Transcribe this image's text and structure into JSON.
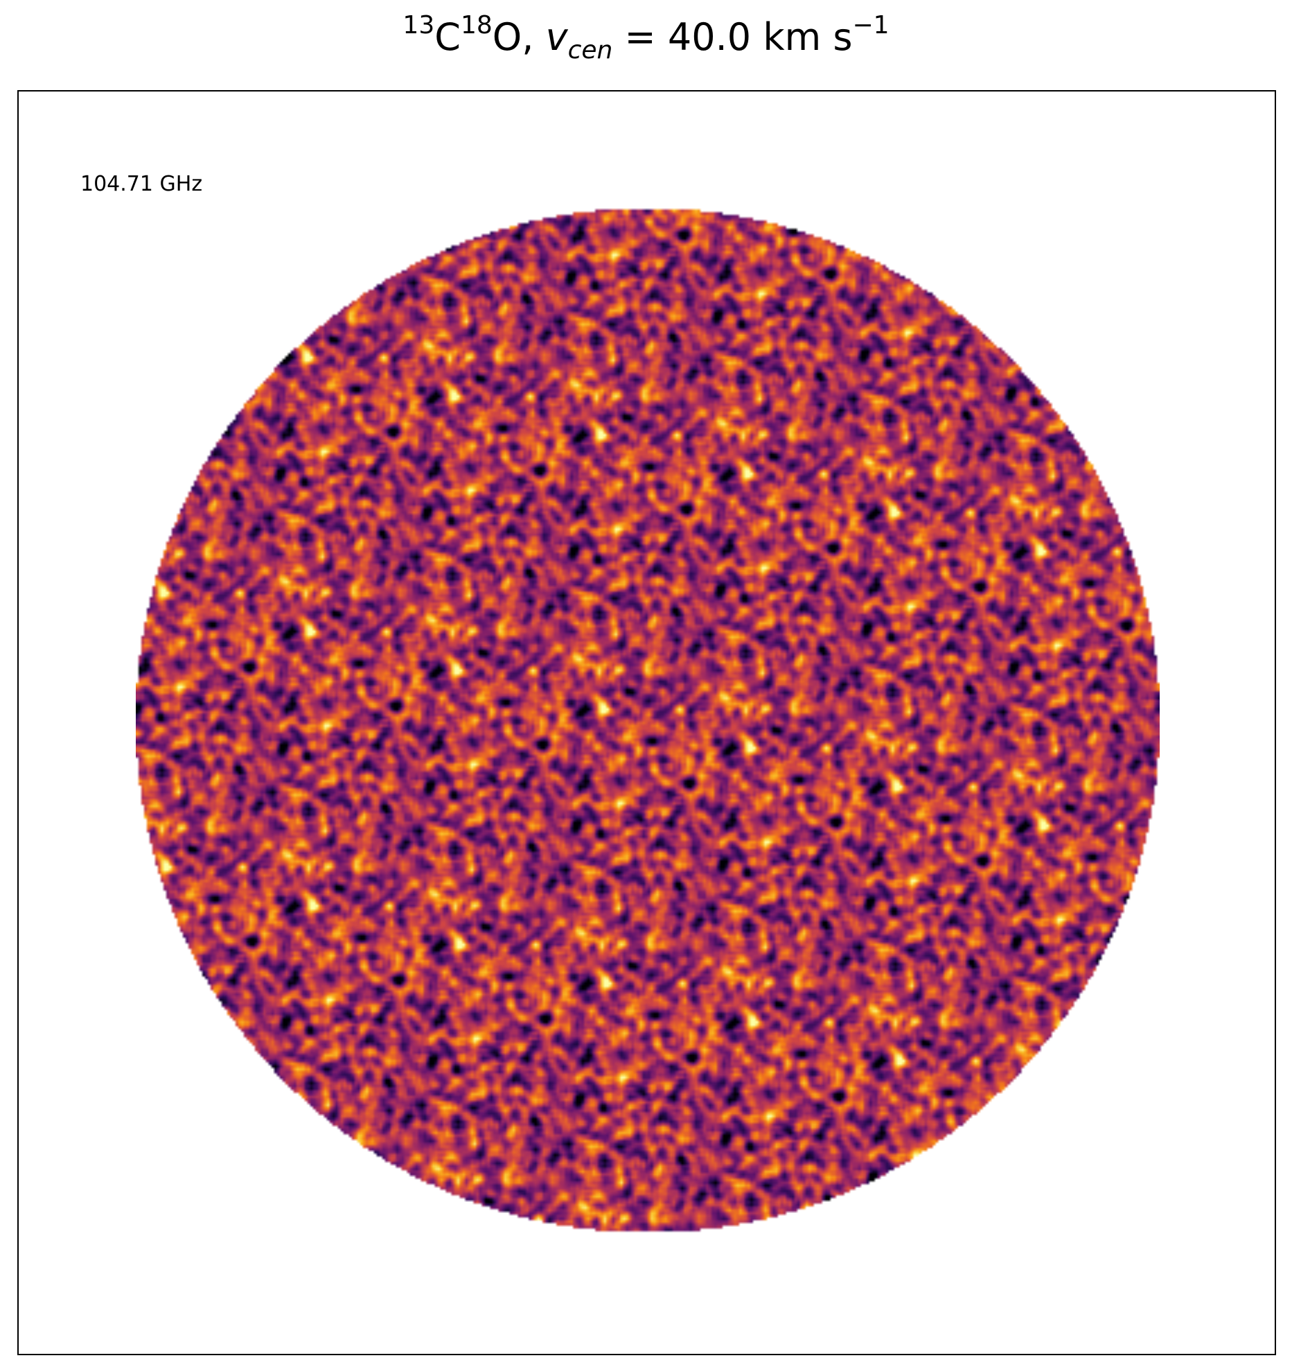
{
  "title": {
    "iso1_mass": "13",
    "element1": "C",
    "iso2_mass": "18",
    "element2": "O,",
    "var": "v",
    "var_sub": "cen",
    "equals_value": " =  40.0 km s",
    "unit_exp": "−1"
  },
  "annotation": {
    "frequency": "104.71 GHz"
  },
  "image": {
    "colormap": "inferno",
    "shape": "circular mask",
    "content": "noise map"
  }
}
